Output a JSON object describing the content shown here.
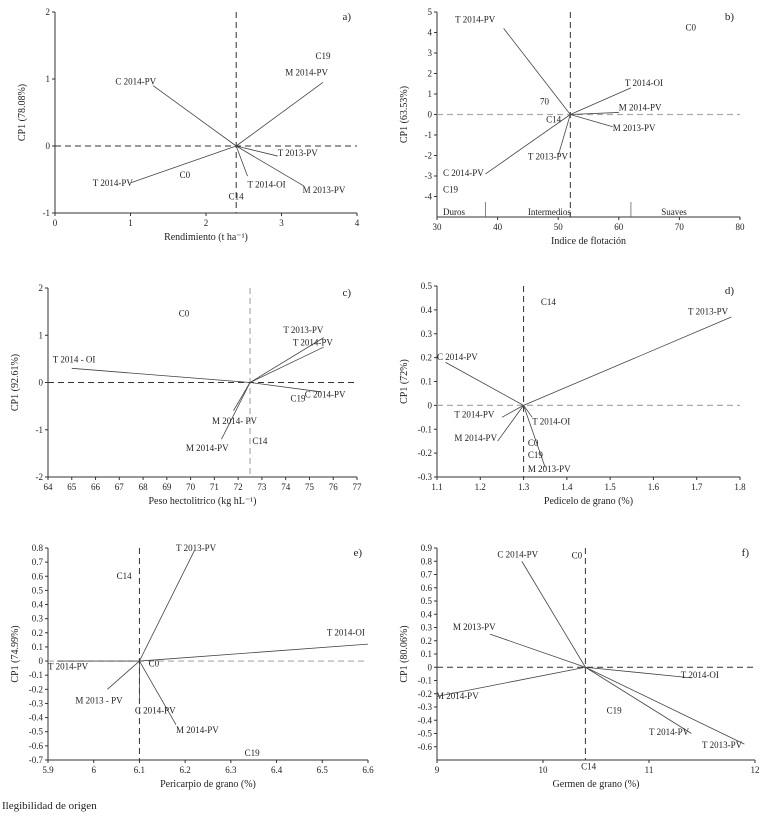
{
  "footer": "Ilegibilidad de origen",
  "chart_data": [
    {
      "type": "biplot",
      "panel_label": "a)",
      "ylabel": "CP1 (78.08%)",
      "xlabel": "Rendimiento (t ha⁻¹)",
      "xlim": [
        0,
        4
      ],
      "ylim": [
        -1,
        2
      ],
      "xticks": [
        0,
        1,
        2,
        3,
        4
      ],
      "yticks": [
        -1,
        0,
        1,
        2
      ],
      "xticklabels": [
        "0",
        "1",
        "2",
        "3",
        "4"
      ],
      "yticklabels": [
        "-1",
        "0",
        "1",
        "2"
      ],
      "origin": [
        2.4,
        0
      ],
      "hline_style": "dashed-dark",
      "vline_style": "dashed-dark",
      "vectors": [
        {
          "label": "C 2014-PV",
          "x": 1.3,
          "y": 0.9
        },
        {
          "label": "M 2014-PV",
          "x": 3.55,
          "y": 0.95
        },
        {
          "label": "T 2014-PV",
          "x": 1.0,
          "y": -0.55
        },
        {
          "label": "T 2013-PV",
          "x": 2.95,
          "y": -0.15
        },
        {
          "label": "T 2014-OI",
          "x": 2.55,
          "y": -0.45
        },
        {
          "label": "M 2013-PV",
          "x": 3.3,
          "y": -0.6
        }
      ],
      "points": [
        {
          "label": "C19",
          "x": 3.45,
          "y": 1.3
        },
        {
          "label": "C0",
          "x": 1.65,
          "y": -0.48
        },
        {
          "label": "C14",
          "x": 2.3,
          "y": -0.8
        }
      ],
      "vector_labels": [
        {
          "text": "C 2014-PV",
          "x": 0.8,
          "y": 0.92
        },
        {
          "text": "M 2014-PV",
          "x": 3.05,
          "y": 1.05
        },
        {
          "text": "T 2014-PV",
          "x": 0.5,
          "y": -0.6
        },
        {
          "text": "T 2013-PV",
          "x": 2.95,
          "y": -0.15
        },
        {
          "text": "T 2014-OI",
          "x": 2.55,
          "y": -0.62
        },
        {
          "text": "M 2013-PV",
          "x": 3.28,
          "y": -0.7
        }
      ]
    },
    {
      "type": "biplot",
      "panel_label": "b)",
      "ylabel": "CP1 (63.53%)",
      "xlabel": "Indice de flotación",
      "xlim": [
        30,
        80
      ],
      "ylim": [
        -5,
        5
      ],
      "xticks": [
        30,
        40,
        50,
        60,
        70,
        80
      ],
      "yticks": [
        -4,
        -3,
        -2,
        -1,
        0,
        1,
        2,
        3,
        4,
        5
      ],
      "xticklabels": [
        "30",
        "40",
        "50",
        "60",
        "70",
        "80"
      ],
      "yticklabels": [
        "-4",
        "-3",
        "-2",
        "-1",
        "0",
        "1",
        "2",
        "3",
        "4",
        "5"
      ],
      "origin": [
        52,
        0
      ],
      "hline_style": "dashed-light",
      "vline_style": "dashed-dark",
      "vectors": [
        {
          "label": "T 2014-PV",
          "x": 41,
          "y": 4.2
        },
        {
          "label": "T 2014-OI",
          "x": 62,
          "y": 1.3
        },
        {
          "label": "M 2014-PV",
          "x": 60,
          "y": 0.1
        },
        {
          "label": "M 2013-PV",
          "x": 59,
          "y": -0.6
        },
        {
          "label": "T 2013-PV",
          "x": 50,
          "y": -2.0
        },
        {
          "label": "C 2014-PV",
          "x": 38,
          "y": -2.9
        }
      ],
      "points": [
        {
          "label": "C0",
          "x": 71,
          "y": 4.1
        },
        {
          "label": "70",
          "x": 47,
          "y": 0.5
        },
        {
          "label": "C14",
          "x": 48,
          "y": -0.4
        },
        {
          "label": "C19",
          "x": 31,
          "y": -3.8
        }
      ],
      "vector_labels": [
        {
          "text": "T 2014-PV",
          "x": 33,
          "y": 4.5
        },
        {
          "text": "T 2014-OI",
          "x": 61,
          "y": 1.4
        },
        {
          "text": "M 2014-PV",
          "x": 60,
          "y": 0.2
        },
        {
          "text": "M 2013-PV",
          "x": 59,
          "y": -0.8
        },
        {
          "text": "T 2013-PV",
          "x": 45,
          "y": -2.2
        },
        {
          "text": "C 2014-PV",
          "x": 31,
          "y": -3.0
        }
      ],
      "annotations": [
        {
          "text": "Duros",
          "x": 31,
          "y": -4.8
        },
        {
          "text": "Intermedios",
          "x": 45,
          "y": -4.8
        },
        {
          "text": "Suaves",
          "x": 67,
          "y": -4.8
        }
      ]
    },
    {
      "type": "biplot",
      "panel_label": "c)",
      "ylabel": "CP1 (92.61%)",
      "xlabel": "Peso hectolitrico (kg hL⁻¹)",
      "xlim": [
        64,
        77
      ],
      "ylim": [
        -2,
        2
      ],
      "xticks": [
        64,
        65,
        66,
        67,
        68,
        69,
        70,
        71,
        72,
        73,
        74,
        75,
        76,
        77
      ],
      "yticks": [
        -2,
        -1,
        0,
        1,
        2
      ],
      "xticklabels": [
        "64",
        "65",
        "66",
        "67",
        "68",
        "69",
        "70",
        "71",
        "72",
        "73",
        "74",
        "75",
        "76",
        "77"
      ],
      "yticklabels": [
        "-2",
        "-1",
        "0",
        "1",
        "2"
      ],
      "origin": [
        72.5,
        0
      ],
      "hline_style": "dashed-dark",
      "vline_style": "dashed-light",
      "vectors": [
        {
          "label": "T 2014 - OI",
          "x": 65,
          "y": 0.3
        },
        {
          "label": "T 2013-PV",
          "x": 75.6,
          "y": 0.95
        },
        {
          "label": "T 2014-PV",
          "x": 75.6,
          "y": 0.75
        },
        {
          "label": "C 2014-PV",
          "x": 75.5,
          "y": -0.2
        },
        {
          "label": "M 2014- PV",
          "x": 71.8,
          "y": -0.6
        },
        {
          "label": "M 2014-PV",
          "x": 71.3,
          "y": -1.2
        }
      ],
      "points": [
        {
          "label": "C0",
          "x": 69.5,
          "y": 1.4
        },
        {
          "label": "C19",
          "x": 74.2,
          "y": -0.4
        },
        {
          "label": "C14",
          "x": 72.6,
          "y": -1.3
        }
      ],
      "vector_labels": [
        {
          "text": "T 2014 - OI",
          "x": 64.2,
          "y": 0.42
        },
        {
          "text": "T 2013-PV",
          "x": 73.9,
          "y": 1.05
        },
        {
          "text": "T 2014-PV",
          "x": 74.3,
          "y": 0.78
        },
        {
          "text": "C 2014-PV",
          "x": 74.8,
          "y": -0.32
        },
        {
          "text": "M 2014- PV",
          "x": 70.9,
          "y": -0.88
        },
        {
          "text": "M 2014-PV",
          "x": 69.8,
          "y": -1.45
        }
      ]
    },
    {
      "type": "biplot",
      "panel_label": "d)",
      "ylabel": "CP1 (72%)",
      "xlabel": "Pedicelo de grano (%)",
      "xlim": [
        1.1,
        1.8
      ],
      "ylim": [
        -0.3,
        0.5
      ],
      "xticks": [
        1.1,
        1.2,
        1.3,
        1.4,
        1.5,
        1.6,
        1.7,
        1.8
      ],
      "yticks": [
        -0.3,
        -0.2,
        -0.1,
        0,
        0.1,
        0.2,
        0.3,
        0.4,
        0.5
      ],
      "xticklabels": [
        "1.1",
        "1.2",
        "1.3",
        "1.4",
        "1.5",
        "1.6",
        "1.7",
        "1.8"
      ],
      "yticklabels": [
        "-0.3",
        "-0.2",
        "-0.1",
        "0",
        "0.1",
        "0.2",
        "0.3",
        "0.4",
        "0.5"
      ],
      "origin": [
        1.3,
        0
      ],
      "hline_style": "dashed-light",
      "vline_style": "dashed-dark",
      "vectors": [
        {
          "label": "T 2013-PV",
          "x": 1.78,
          "y": 0.37
        },
        {
          "label": "C 2014-PV",
          "x": 1.12,
          "y": 0.18
        },
        {
          "label": "T 2014-PV",
          "x": 1.25,
          "y": -0.05
        },
        {
          "label": "T 2014-OI",
          "x": 1.32,
          "y": -0.05
        },
        {
          "label": "M 2014-PV",
          "x": 1.24,
          "y": -0.15
        },
        {
          "label": "M 2013-PV",
          "x": 1.35,
          "y": -0.26
        }
      ],
      "points": [
        {
          "label": "C14",
          "x": 1.34,
          "y": 0.42
        },
        {
          "label": "C0",
          "x": 1.31,
          "y": -0.17
        },
        {
          "label": "C19",
          "x": 1.31,
          "y": -0.22
        }
      ],
      "vector_labels": [
        {
          "text": "T 2013-PV",
          "x": 1.68,
          "y": 0.38
        },
        {
          "text": "C 2014-PV",
          "x": 1.1,
          "y": 0.19
        },
        {
          "text": "T 2014-PV",
          "x": 1.14,
          "y": -0.05
        },
        {
          "text": "T 2014-OI",
          "x": 1.32,
          "y": -0.08
        },
        {
          "text": "M 2014-PV",
          "x": 1.14,
          "y": -0.15
        },
        {
          "text": "M 2013-PV",
          "x": 1.31,
          "y": -0.28
        }
      ]
    },
    {
      "type": "biplot",
      "panel_label": "e)",
      "ylabel": "CP1 (74.99%)",
      "xlabel": "Pericarpio de grano (%)",
      "xlim": [
        5.9,
        6.6
      ],
      "ylim": [
        -0.7,
        0.8
      ],
      "xticks": [
        5.9,
        6.0,
        6.1,
        6.2,
        6.3,
        6.4,
        6.5,
        6.6
      ],
      "yticks": [
        -0.7,
        -0.6,
        -0.5,
        -0.4,
        -0.3,
        -0.2,
        -0.1,
        0,
        0.1,
        0.2,
        0.3,
        0.4,
        0.5,
        0.6,
        0.7,
        0.8
      ],
      "xticklabels": [
        "5.9",
        "6",
        "6.1",
        "6.2",
        "6.3",
        "6.4",
        "6.5",
        "6.6"
      ],
      "yticklabels": [
        "-0.7",
        "-0.6",
        "-0.5",
        "-0.4",
        "-0.3",
        "-0.2",
        "-0.1",
        "0",
        "0.1",
        "0.2",
        "0.3",
        "0.4",
        "0.5",
        "0.6",
        "0.7",
        "0.8"
      ],
      "origin": [
        6.1,
        0
      ],
      "hline_style": "dashed-light",
      "vline_style": "dashed-dark",
      "vectors": [
        {
          "label": "T 2013-PV",
          "x": 6.22,
          "y": 0.78
        },
        {
          "label": "T 2014-OI",
          "x": 6.6,
          "y": 0.12
        },
        {
          "label": "T 2014-PV",
          "x": 5.92,
          "y": 0.0
        },
        {
          "label": "M 2013 - PV",
          "x": 6.03,
          "y": -0.2
        },
        {
          "label": "C 2014-PV",
          "x": 6.1,
          "y": -0.26
        },
        {
          "label": "M 2014-PV",
          "x": 6.18,
          "y": -0.45
        }
      ],
      "points": [
        {
          "label": "C14",
          "x": 6.05,
          "y": 0.58
        },
        {
          "label": "C0",
          "x": 6.12,
          "y": -0.04
        },
        {
          "label": "C19",
          "x": 6.33,
          "y": -0.67
        }
      ],
      "vector_labels": [
        {
          "text": "T 2013-PV",
          "x": 6.18,
          "y": 0.78
        },
        {
          "text": "T 2014-OI",
          "x": 6.51,
          "y": 0.18
        },
        {
          "text": "T 2014-PV",
          "x": 5.9,
          "y": -0.06
        },
        {
          "text": "M 2013 - PV",
          "x": 5.96,
          "y": -0.3
        },
        {
          "text": "C 2014-PV",
          "x": 6.09,
          "y": -0.37
        },
        {
          "text": "M 2014-PV",
          "x": 6.18,
          "y": -0.51
        }
      ]
    },
    {
      "type": "biplot",
      "panel_label": "f)",
      "ylabel": "CP1 (80.06%)",
      "xlabel": "Germen de grano (%)",
      "xlim": [
        9,
        12
      ],
      "ylim": [
        -0.7,
        0.9
      ],
      "xticks": [
        9,
        10,
        11,
        12
      ],
      "yticks": [
        -0.6,
        -0.5,
        -0.4,
        -0.3,
        -0.2,
        -0.1,
        0,
        0.1,
        0.2,
        0.3,
        0.4,
        0.5,
        0.6,
        0.7,
        0.8,
        0.9
      ],
      "xticklabels": [
        "9",
        "10",
        "11",
        "12"
      ],
      "yticklabels": [
        "-0.6",
        "-0.5",
        "-0.4",
        "-0.3",
        "-0.2",
        "-0.1",
        "0",
        "0.1",
        "0.2",
        "0.3",
        "0.4",
        "0.5",
        "0.6",
        "0.7",
        "0.8",
        "0.9"
      ],
      "origin": [
        10.4,
        0
      ],
      "hline_style": "dashed-dark",
      "vline_style": "dashed-dark",
      "vectors": [
        {
          "label": "C 2014-PV",
          "x": 9.8,
          "y": 0.8
        },
        {
          "label": "M 2013-PV",
          "x": 9.5,
          "y": 0.25
        },
        {
          "label": "M 2014-PV",
          "x": 9.0,
          "y": -0.22
        },
        {
          "label": "T 2014-OI",
          "x": 11.4,
          "y": -0.08
        },
        {
          "label": "T 2014-PV",
          "x": 11.4,
          "y": -0.5
        },
        {
          "label": "T 2013-PV",
          "x": 11.9,
          "y": -0.58
        }
      ],
      "points": [
        {
          "label": "C0",
          "x": 10.27,
          "y": 0.82
        },
        {
          "label": "C19",
          "x": 10.6,
          "y": -0.35
        },
        {
          "label": "C14",
          "x": 10.36,
          "y": -0.77
        }
      ],
      "vector_labels": [
        {
          "text": "C 2014-PV",
          "x": 9.57,
          "y": 0.83
        },
        {
          "text": "M 2013-PV",
          "x": 9.15,
          "y": 0.28
        },
        {
          "text": "M 2014-PV",
          "x": 8.99,
          "y": -0.24
        },
        {
          "text": "T 2014-OI",
          "x": 11.3,
          "y": -0.08
        },
        {
          "text": "T 2014-PV",
          "x": 11.0,
          "y": -0.51
        },
        {
          "text": "T 2013-PV",
          "x": 11.5,
          "y": -0.61
        }
      ]
    }
  ]
}
